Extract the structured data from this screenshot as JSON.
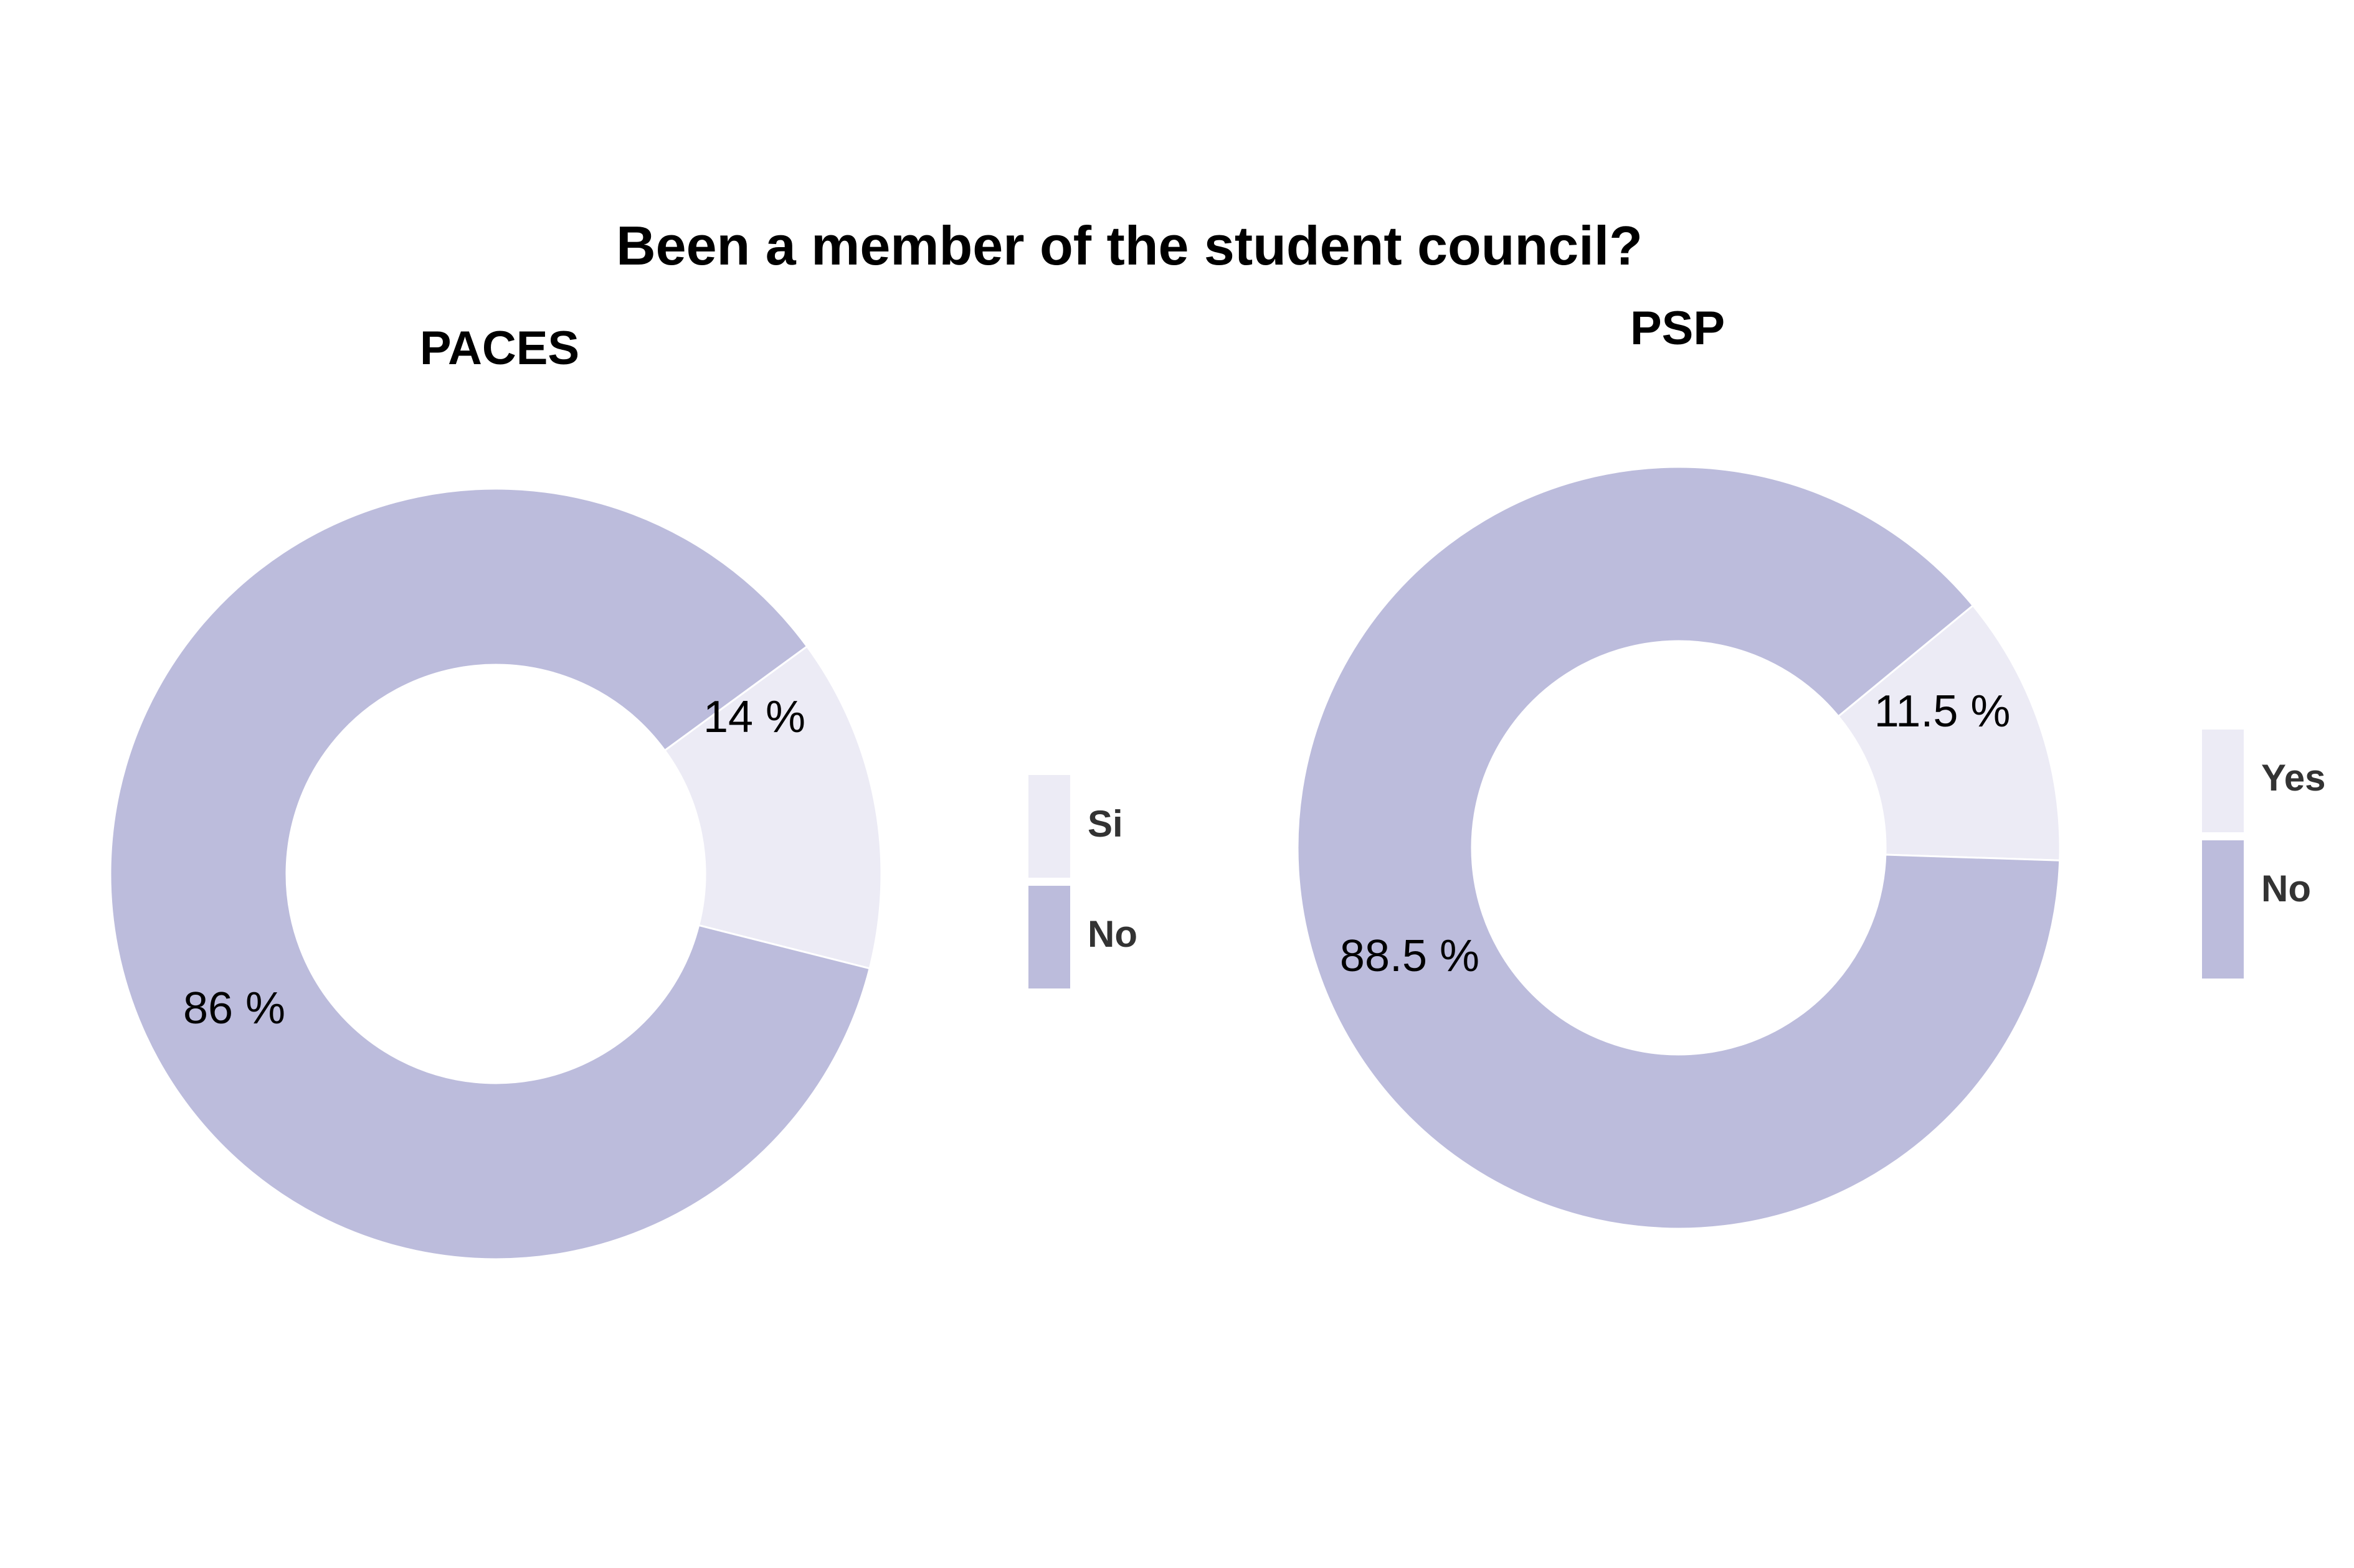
{
  "title": "Been a member of the student council?",
  "chart_data": [
    {
      "type": "pie",
      "donut": true,
      "title": "PACES",
      "categories": [
        "Si",
        "No"
      ],
      "values": [
        14,
        86
      ],
      "labels": [
        "14 %",
        "86 %"
      ],
      "colors": [
        "#ECEBF5",
        "#BCBCDC"
      ],
      "legend": {
        "placement": "right",
        "entries": [
          "Si",
          "No"
        ]
      }
    },
    {
      "type": "pie",
      "donut": true,
      "title": "PSP",
      "categories": [
        "Yes",
        "No"
      ],
      "values": [
        11.5,
        88.5
      ],
      "labels": [
        "11.5 %",
        "88.5 %"
      ],
      "colors": [
        "#ECEBF5",
        "#BCBCDC"
      ],
      "legend": {
        "placement": "right",
        "entries": [
          "Yes",
          "No"
        ]
      }
    }
  ]
}
